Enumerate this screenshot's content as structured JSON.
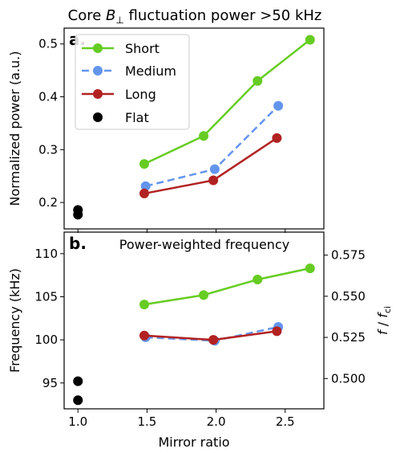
{
  "chart_data": [
    {
      "panel": "a.",
      "type": "line",
      "title": "Core B⊥ fluctuation power >50 kHz",
      "title_parts": [
        "Core ",
        "B",
        "⊥",
        " fluctuation power >50 kHz"
      ],
      "xlabel": "Mirror ratio",
      "ylabel": "Normalized power (a.u.)",
      "xlim": [
        0.9,
        2.78
      ],
      "ylim": [
        0.15,
        0.53
      ],
      "xticks": [
        1.0,
        1.5,
        2.0,
        2.5
      ],
      "xtick_labels": [
        "1.0",
        "1.5",
        "2.0",
        "2.5"
      ],
      "yticks": [
        0.2,
        0.3,
        0.4,
        0.5
      ],
      "ytick_labels": [
        "0.2",
        "0.3",
        "0.4",
        "0.5"
      ],
      "legend_position": "top-left",
      "grid": false,
      "series": [
        {
          "name": "Short",
          "color": "#66cc22",
          "linestyle": "solid",
          "x": [
            1.48,
            1.91,
            2.3,
            2.68
          ],
          "y": [
            0.273,
            0.326,
            0.43,
            0.508
          ]
        },
        {
          "name": "Medium",
          "color": "#6495ed",
          "linestyle": "dashed",
          "x": [
            1.49,
            1.99,
            2.45
          ],
          "y": [
            0.231,
            0.263,
            0.383
          ]
        },
        {
          "name": "Long",
          "color": "#b22222",
          "linestyle": "solid",
          "x": [
            1.48,
            1.98,
            2.44
          ],
          "y": [
            0.217,
            0.242,
            0.322
          ]
        },
        {
          "name": "Flat",
          "color": "#000000",
          "linestyle": "none",
          "x": [
            1.0,
            1.0
          ],
          "y": [
            0.186,
            0.177
          ]
        }
      ]
    },
    {
      "panel": "b.",
      "type": "line",
      "annotation": "Power-weighted frequency",
      "xlabel": "Mirror ratio",
      "ylabel": "Frequency (kHz)",
      "ylabel_right": "f / f_ci",
      "ylabel_right_parts": [
        "f",
        " / ",
        "f",
        "ci"
      ],
      "xlim": [
        0.9,
        2.78
      ],
      "ylim": [
        92.0,
        112.5
      ],
      "xticks": [
        1.0,
        1.5,
        2.0,
        2.5
      ],
      "xtick_labels": [
        "1.0",
        "1.5",
        "2.0",
        "2.5"
      ],
      "yticks": [
        95,
        100,
        105,
        110
      ],
      "ytick_labels": [
        "95",
        "100",
        "105",
        "110"
      ],
      "yticks_right": [
        0.5,
        0.525,
        0.55,
        0.575
      ],
      "ytick_labels_right": [
        "0.500",
        "0.525",
        "0.550",
        "0.575"
      ],
      "grid": false,
      "series": [
        {
          "name": "Short",
          "color": "#66cc22",
          "linestyle": "solid",
          "x": [
            1.48,
            1.91,
            2.3,
            2.68
          ],
          "y": [
            104.1,
            105.2,
            107.0,
            108.3
          ]
        },
        {
          "name": "Medium",
          "color": "#6495ed",
          "linestyle": "dashed",
          "x": [
            1.49,
            1.99,
            2.45
          ],
          "y": [
            100.3,
            99.9,
            101.5
          ]
        },
        {
          "name": "Long",
          "color": "#b22222",
          "linestyle": "solid",
          "x": [
            1.48,
            1.98,
            2.44
          ],
          "y": [
            100.5,
            100.0,
            101.0
          ]
        },
        {
          "name": "Flat",
          "color": "#000000",
          "linestyle": "none",
          "x": [
            1.0,
            1.0
          ],
          "y": [
            95.2,
            93.0
          ]
        }
      ]
    }
  ]
}
